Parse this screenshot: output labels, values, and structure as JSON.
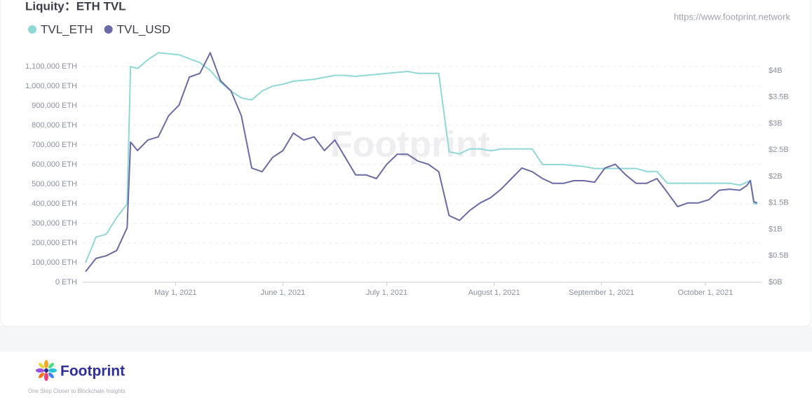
{
  "chart_data": {
    "type": "line",
    "title": "Liquity：ETH TVL",
    "x": [
      "2021-04-05",
      "2021-04-08",
      "2021-04-11",
      "2021-04-14",
      "2021-04-17",
      "2021-04-18",
      "2021-04-20",
      "2021-04-23",
      "2021-04-26",
      "2021-04-29",
      "2021-05-02",
      "2021-05-05",
      "2021-05-08",
      "2021-05-11",
      "2021-05-14",
      "2021-05-17",
      "2021-05-20",
      "2021-05-23",
      "2021-05-26",
      "2021-05-29",
      "2021-06-01",
      "2021-06-04",
      "2021-06-07",
      "2021-06-10",
      "2021-06-13",
      "2021-06-16",
      "2021-06-19",
      "2021-06-22",
      "2021-06-25",
      "2021-06-28",
      "2021-07-01",
      "2021-07-04",
      "2021-07-07",
      "2021-07-10",
      "2021-07-13",
      "2021-07-16",
      "2021-07-19",
      "2021-07-22",
      "2021-07-25",
      "2021-07-28",
      "2021-07-31",
      "2021-08-03",
      "2021-08-06",
      "2021-08-09",
      "2021-08-12",
      "2021-08-15",
      "2021-08-18",
      "2021-08-21",
      "2021-08-24",
      "2021-08-27",
      "2021-08-30",
      "2021-09-02",
      "2021-09-05",
      "2021-09-08",
      "2021-09-11",
      "2021-09-14",
      "2021-09-17",
      "2021-09-20",
      "2021-09-23",
      "2021-09-26",
      "2021-09-29",
      "2021-10-02",
      "2021-10-05",
      "2021-10-08",
      "2021-10-11",
      "2021-10-13",
      "2021-10-14",
      "2021-10-15",
      "2021-10-16"
    ],
    "series": [
      {
        "name": "TVL_ETH",
        "color": "#8fd8d6",
        "values": [
          100000,
          230000,
          245000,
          330000,
          400000,
          1100000,
          1090000,
          1135000,
          1170000,
          1165000,
          1160000,
          1140000,
          1120000,
          1080000,
          1020000,
          975000,
          940000,
          930000,
          975000,
          1000000,
          1010000,
          1025000,
          1030000,
          1035000,
          1045000,
          1055000,
          1055000,
          1050000,
          1055000,
          1060000,
          1065000,
          1070000,
          1075000,
          1065000,
          1065000,
          1065000,
          665000,
          655000,
          680000,
          680000,
          670000,
          680000,
          680000,
          680000,
          680000,
          600000,
          600000,
          600000,
          595000,
          590000,
          580000,
          580000,
          580000,
          580000,
          580000,
          565000,
          565000,
          505000,
          505000,
          505000,
          505000,
          505000,
          505000,
          505000,
          495000,
          510000,
          520000,
          400000,
          400000
        ]
      },
      {
        "name": "TVL_USD",
        "color": "#6a6aa6",
        "axis": "y2",
        "values": [
          200000000,
          450000000,
          500000000,
          600000000,
          1030000000,
          2650000000,
          2490000000,
          2690000000,
          2750000000,
          3150000000,
          3350000000,
          3880000000,
          3950000000,
          4340000000,
          3810000000,
          3620000000,
          3150000000,
          2160000000,
          2090000000,
          2360000000,
          2490000000,
          2820000000,
          2690000000,
          2750000000,
          2490000000,
          2690000000,
          2360000000,
          2030000000,
          2030000000,
          1960000000,
          2230000000,
          2420000000,
          2420000000,
          2290000000,
          2230000000,
          2090000000,
          1260000000,
          1170000000,
          1360000000,
          1500000000,
          1600000000,
          1760000000,
          1960000000,
          2160000000,
          2090000000,
          1960000000,
          1870000000,
          1870000000,
          1920000000,
          1920000000,
          1890000000,
          2160000000,
          2230000000,
          2030000000,
          1870000000,
          1870000000,
          1960000000,
          1700000000,
          1430000000,
          1500000000,
          1500000000,
          1560000000,
          1740000000,
          1760000000,
          1740000000,
          1830000000,
          1920000000,
          1520000000,
          1500000000
        ]
      }
    ],
    "xlim": [
      "2021-04-05",
      "2021-10-16"
    ],
    "xticks": [
      {
        "value": "2021-05-01",
        "label": "May 1, 2021"
      },
      {
        "value": "2021-06-01",
        "label": "June 1, 2021"
      },
      {
        "value": "2021-07-01",
        "label": "July 1, 2021"
      },
      {
        "value": "2021-08-01",
        "label": "August 1, 2021"
      },
      {
        "value": "2021-09-01",
        "label": "September 1, 2021"
      },
      {
        "value": "2021-10-01",
        "label": "October 1, 2021"
      }
    ],
    "ylim": [
      0,
      1200000
    ],
    "yticks": [
      {
        "value": 0,
        "label": "0 ETH"
      },
      {
        "value": 100000,
        "label": "100,000 ETH"
      },
      {
        "value": 200000,
        "label": "200,000 ETH"
      },
      {
        "value": 300000,
        "label": "300,000 ETH"
      },
      {
        "value": 400000,
        "label": "400,000 ETH"
      },
      {
        "value": 500000,
        "label": "500,000 ETH"
      },
      {
        "value": 600000,
        "label": "600,000 ETH"
      },
      {
        "value": 700000,
        "label": "700,000 ETH"
      },
      {
        "value": 800000,
        "label": "800,000 ETH"
      },
      {
        "value": 900000,
        "label": "900,000 ETH"
      },
      {
        "value": 1000000,
        "label": "1,000,000 ETH"
      },
      {
        "value": 1100000,
        "label": "1,100,000 ETH"
      }
    ],
    "y2lim": [
      0,
      4450000000
    ],
    "y2ticks": [
      {
        "value": 0,
        "label": "$0B"
      },
      {
        "value": 500000000,
        "label": "$0.5B"
      },
      {
        "value": 1000000000,
        "label": "$1B"
      },
      {
        "value": 1500000000,
        "label": "$1.5B"
      },
      {
        "value": 2000000000,
        "label": "$2B"
      },
      {
        "value": 2500000000,
        "label": "$2.5B"
      },
      {
        "value": 3000000000,
        "label": "$3B"
      },
      {
        "value": 3500000000,
        "label": "$3.5B"
      },
      {
        "value": 4000000000,
        "label": "$4B"
      }
    ],
    "grid": true,
    "legend": "top-left"
  },
  "source": "https://www.footprint.network",
  "watermark": "Footprint",
  "footer": {
    "brand": "Footprint",
    "tagline": "One Step Closer to Blockchain Insights"
  }
}
